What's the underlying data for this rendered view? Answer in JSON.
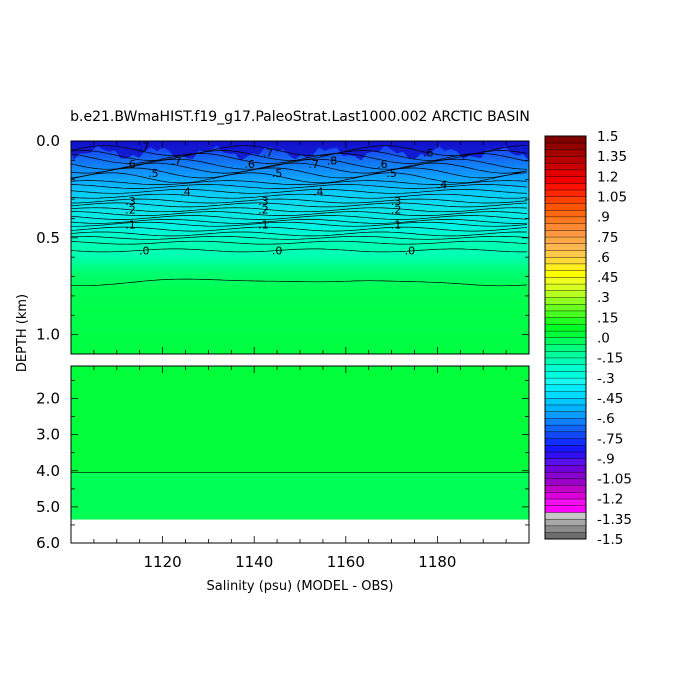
{
  "chart_data": {
    "type": "heatmap",
    "title": "b.e21.BWmaHIST.f19_g17.PaleoStrat.Last1000.002 ARCTIC BASIN",
    "xlabel": "Salinity (psu) (MODEL - OBS)",
    "ylabel": "DEPTH (km)",
    "xlim": [
      1100,
      1200
    ],
    "x_ticks": [
      "1120",
      "1140",
      "1160",
      "1180"
    ],
    "upper_panel": {
      "ylim": [
        0.0,
        1.1
      ],
      "y_ticks": [
        "0.0",
        "0.5",
        "1.0"
      ]
    },
    "lower_panel": {
      "ylim": [
        1.1,
        6.0
      ],
      "y_ticks": [
        "2.0",
        "3.0",
        "4.0",
        "5.0",
        "6.0"
      ]
    },
    "bottom_depth_km": 5.35,
    "contour_depths_km": {
      "-0.6": 0.12,
      "-0.5": 0.165,
      "-0.4": 0.26,
      "-0.3": 0.31,
      "-0.2": 0.355,
      "-0.1": 0.43,
      "0.0": 0.565,
      "0.05": 0.74,
      "0.05_lower": 4.05
    },
    "contour_labels": [
      {
        "text": ".7",
        "x": 1116,
        "y": 0.028
      },
      {
        "text": ".6",
        "x": 1113,
        "y": 0.12
      },
      {
        "text": ".7",
        "x": 1123,
        "y": 0.1
      },
      {
        "text": ".5",
        "x": 1118,
        "y": 0.165
      },
      {
        "text": ".4",
        "x": 1125,
        "y": 0.26
      },
      {
        "text": ".3",
        "x": 1113,
        "y": 0.31
      },
      {
        "text": ".2",
        "x": 1113,
        "y": 0.355
      },
      {
        "text": ".1",
        "x": 1113,
        "y": 0.43
      },
      {
        "text": ".0",
        "x": 1116,
        "y": 0.565
      },
      {
        "text": ".7",
        "x": 1143,
        "y": 0.06
      },
      {
        "text": ".6",
        "x": 1139,
        "y": 0.12
      },
      {
        "text": ".5",
        "x": 1145,
        "y": 0.165
      },
      {
        "text": ".3",
        "x": 1142,
        "y": 0.31
      },
      {
        "text": ".2",
        "x": 1142,
        "y": 0.355
      },
      {
        "text": ".1",
        "x": 1142,
        "y": 0.43
      },
      {
        "text": ".0",
        "x": 1145,
        "y": 0.565
      },
      {
        "text": ".7",
        "x": 1153,
        "y": 0.12
      },
      {
        "text": ".8",
        "x": 1157,
        "y": 0.1
      },
      {
        "text": ".4",
        "x": 1154,
        "y": 0.26
      },
      {
        "text": ".6",
        "x": 1168,
        "y": 0.12
      },
      {
        "text": ".5",
        "x": 1170,
        "y": 0.165
      },
      {
        "text": ".3",
        "x": 1171,
        "y": 0.31
      },
      {
        "text": ".2",
        "x": 1171,
        "y": 0.355
      },
      {
        "text": ".1",
        "x": 1171,
        "y": 0.43
      },
      {
        "text": ".0",
        "x": 1174,
        "y": 0.565
      },
      {
        "text": ".6",
        "x": 1178,
        "y": 0.06
      },
      {
        "text": ".4",
        "x": 1181,
        "y": 0.225
      }
    ],
    "colorbar": {
      "tick_labels": [
        "1.5",
        "1.35",
        "1.2",
        "1.05",
        ".9",
        ".75",
        ".6",
        ".45",
        ".3",
        ".15",
        ".0",
        "-.15",
        "-.3",
        "-.45",
        "-.6",
        "-.75",
        "-.9",
        "-1.05",
        "-1.2",
        "-1.35",
        "-1.5"
      ],
      "min": -1.5,
      "max": 1.5,
      "colors": [
        "#6e6e6e",
        "#8c8c8c",
        "#a8a8a8",
        "#c6c6c6",
        "#ff00ff",
        "#f010f0",
        "#dc00dc",
        "#c000c8",
        "#9c00c8",
        "#8800d0",
        "#7000dc",
        "#5810e8",
        "#3010f0",
        "#1818ff",
        "#1030ff",
        "#1048f8",
        "#1064f8",
        "#1080ff",
        "#0a9cff",
        "#00b4ff",
        "#00c8ff",
        "#00dcff",
        "#00ecff",
        "#18f8f0",
        "#00ffe0",
        "#00ffcc",
        "#00ffb4",
        "#00ff9a",
        "#00ff7e",
        "#00ff5c",
        "#00ff38",
        "#00ff22",
        "#20ff20",
        "#46ff20",
        "#6cff20",
        "#92ff20",
        "#b6ff20",
        "#d8ff20",
        "#f0ff20",
        "#ffff00",
        "#ffee20",
        "#ffd838",
        "#ffc848",
        "#ffb850",
        "#ffa848",
        "#ff9840",
        "#ff8830",
        "#ff7820",
        "#ff6810",
        "#ff5400",
        "#ff4000",
        "#ff2800",
        "#ff1000",
        "#f00000",
        "#e00000",
        "#cc0000",
        "#b80000",
        "#a40000",
        "#920000",
        "#800000"
      ]
    }
  }
}
